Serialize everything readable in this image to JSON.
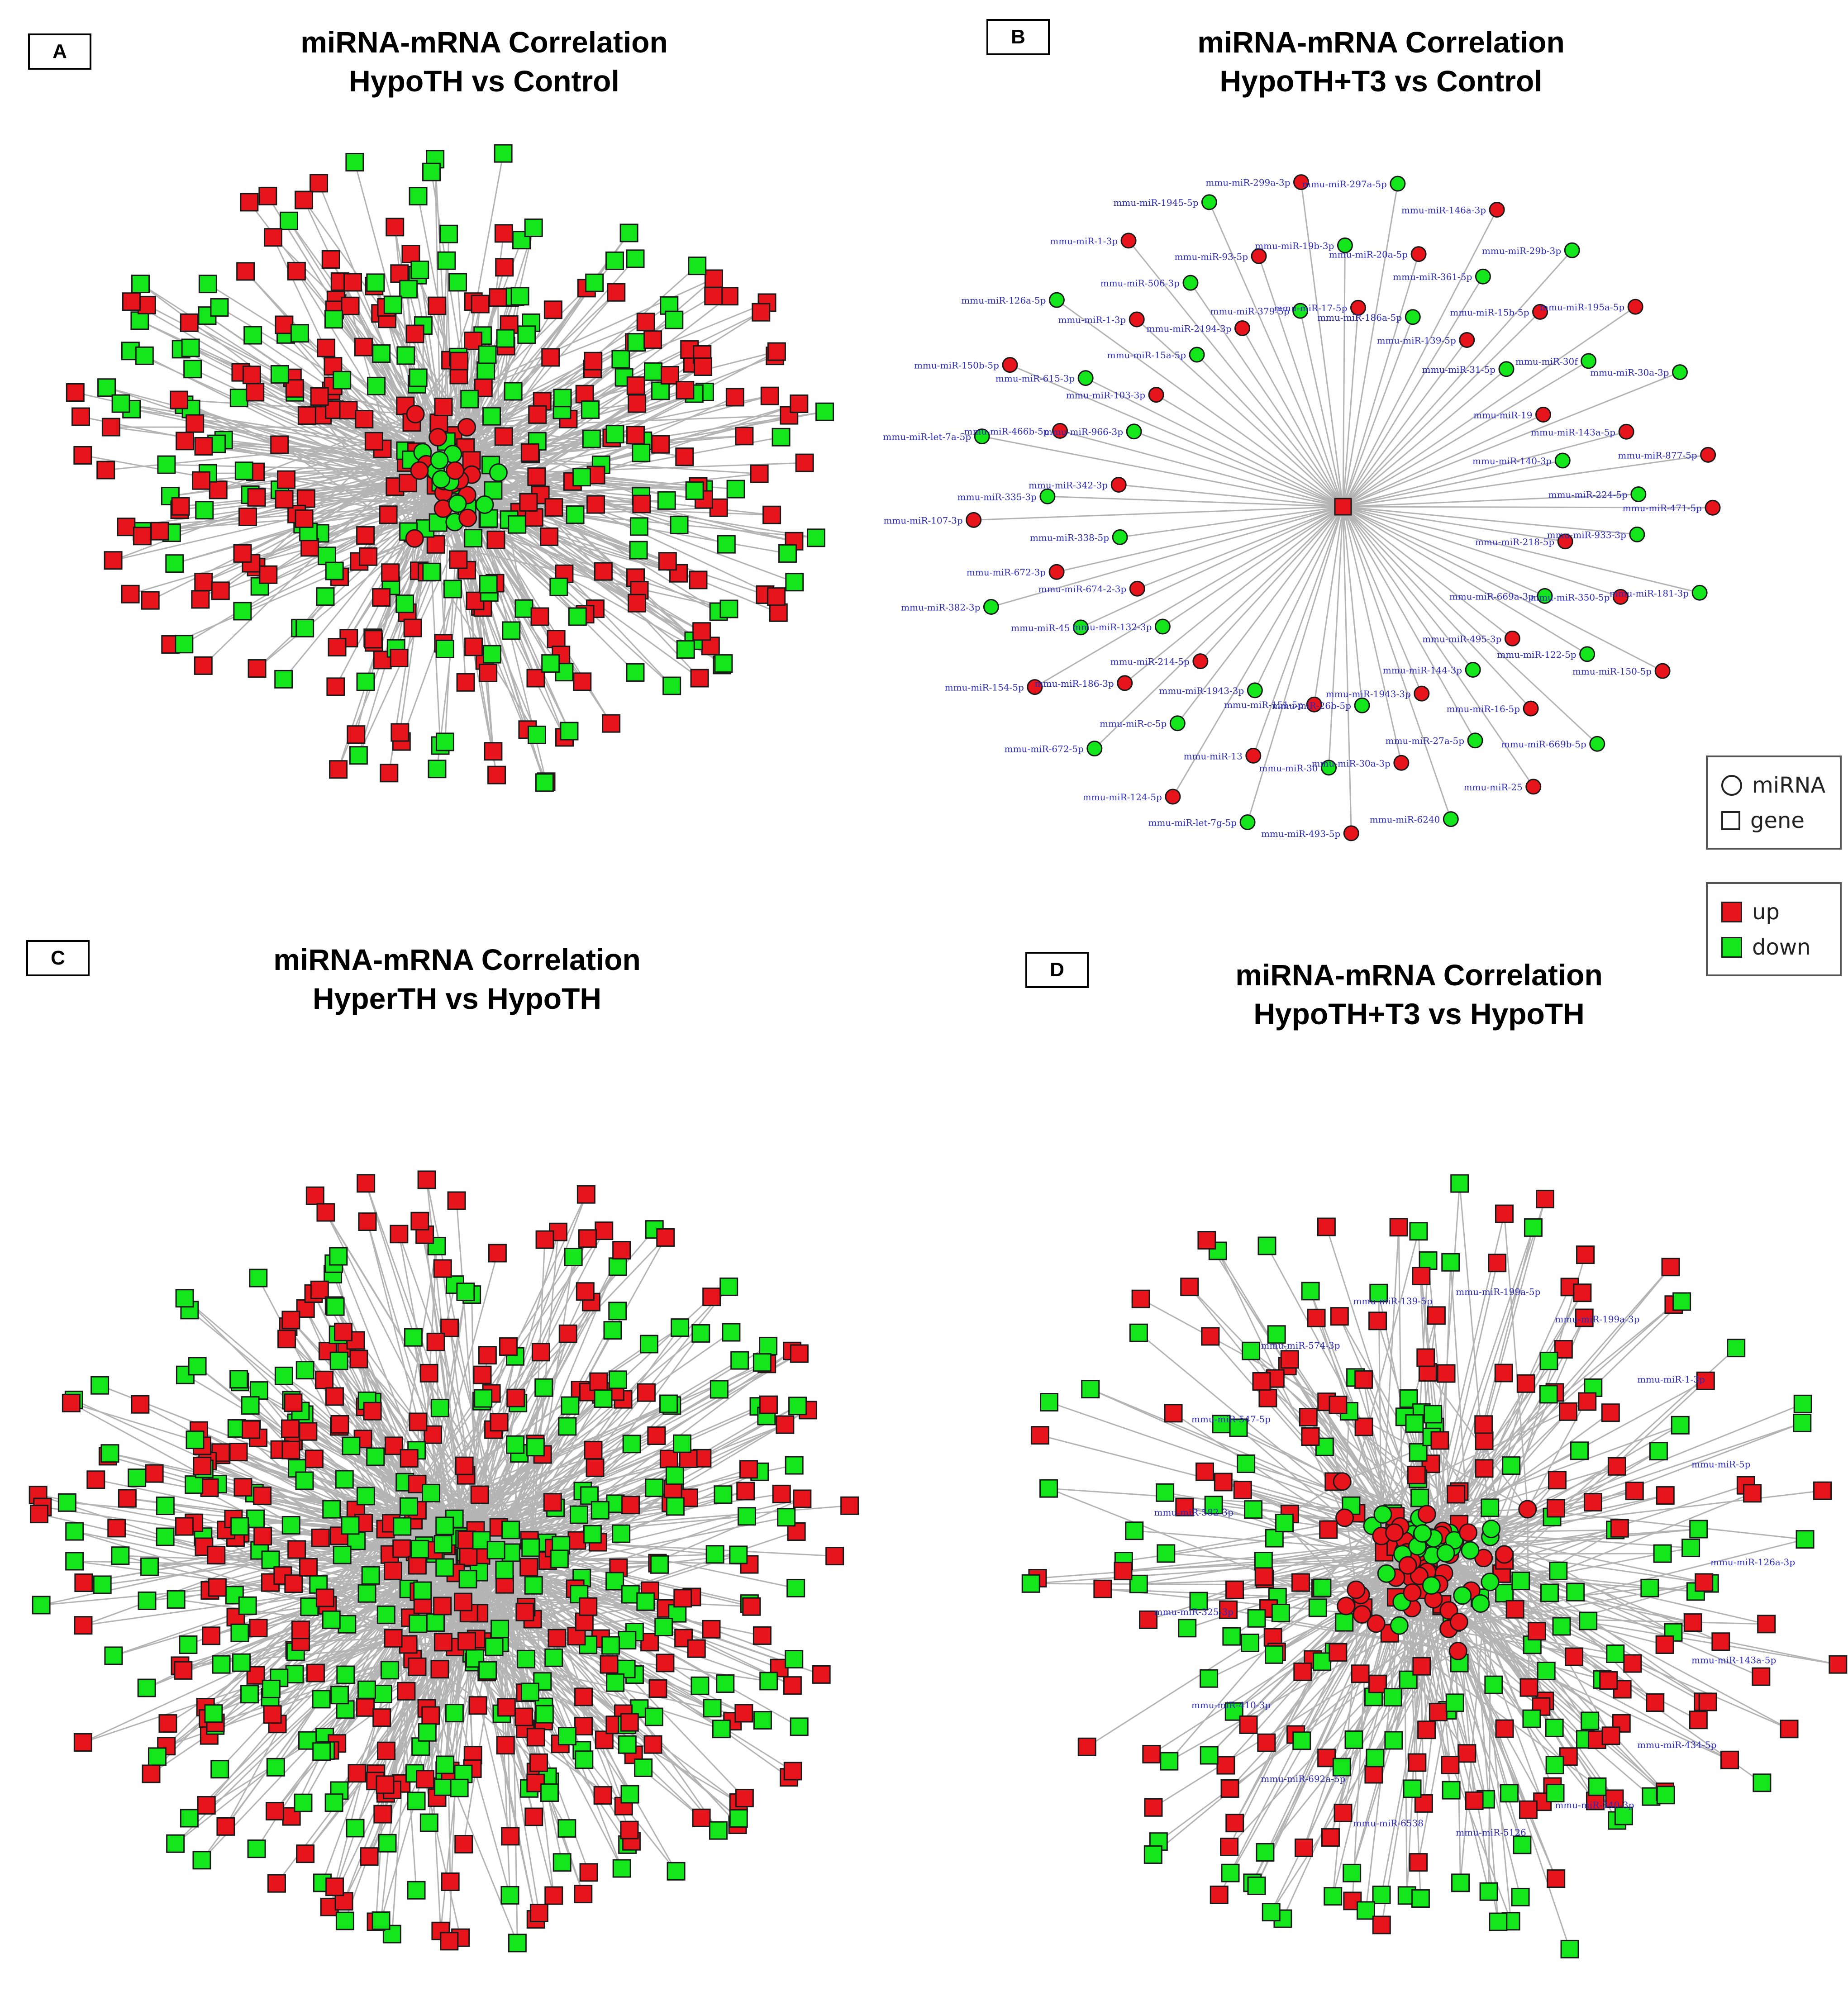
{
  "panels": [
    {
      "letter": "A",
      "title_line1": "miRNA-mRNA Correlation",
      "title_line2": "HypoTH vs Control"
    },
    {
      "letter": "B",
      "title_line1": "miRNA-mRNA Correlation",
      "title_line2": "HypoTH+T3 vs Control"
    },
    {
      "letter": "C",
      "title_line1": "miRNA-mRNA Correlation",
      "title_line2": "HyperTH vs HypoTH"
    },
    {
      "letter": "D",
      "title_line1": "miRNA-mRNA Correlation",
      "title_line2": "HypoTH+T3 vs HypoTH"
    }
  ],
  "legend": {
    "shape": {
      "mirna": "miRNA",
      "gene": "gene"
    },
    "color": {
      "up": "up",
      "down": "down"
    }
  },
  "colors": {
    "up": "#e8141c",
    "down": "#14e61c",
    "edge": "#b4b4b4",
    "outline": "#1a1a1a",
    "label": "#2a2ab4"
  },
  "panel_b_labels": [
    "mmu-miR-471-5p",
    "mmu-miR-933-3p",
    "mmu-miR-218-5p",
    "mmu-miR-181-3p",
    "mmu-miR-350-5p",
    "mmu-miR-669a-3p",
    "mmu-miR-150-5p",
    "mmu-miR-122-5p",
    "mmu-miR-495-3p",
    "mmu-miR-669b-5p",
    "mmu-miR-16-5p",
    "mmu-miR-144-3p",
    "mmu-miR-25",
    "mmu-miR-27a-5p",
    "mmu-miR-1943-3p",
    "mmu-miR-6240",
    "mmu-miR-30a-3p",
    "mmu-miR-26b-5p",
    "mmu-miR-493-5p",
    "mmu-miR-30",
    "mmu-miR-151-5p",
    "mmu-miR-let-7g-5p",
    "mmu-miR-13",
    "mmu-miR-1943-3p",
    "mmu-miR-124-5p",
    "mmu-miR-c-5p",
    "mmu-miR-214-5p",
    "mmu-miR-672-5p",
    "mmu-miR-186-3p",
    "mmu-miR-132-3p",
    "mmu-miR-154-5p",
    "mmu-miR-45",
    "mmu-miR-674-2-3p",
    "mmu-miR-382-3p",
    "mmu-miR-672-3p",
    "mmu-miR-338-5p",
    "mmu-miR-107-3p",
    "mmu-miR-335-3p",
    "mmu-miR-342-3p",
    "mmu-miR-let-7a-5p",
    "mmu-miR-466b-5p",
    "mmu-miR-966-3p",
    "mmu-miR-150b-5p",
    "mmu-miR-615-3p",
    "mmu-miR-103-3p",
    "mmu-miR-126a-5p",
    "mmu-miR-1-3p",
    "mmu-miR-15a-5p",
    "mmu-miR-1-3p",
    "mmu-miR-506-3p",
    "mmu-miR-2194-3p",
    "mmu-miR-1945-5p",
    "mmu-miR-93-5p",
    "mmu-miR-379-5p",
    "mmu-miR-299a-3p",
    "mmu-miR-19b-3p",
    "mmu-miR-17-5p",
    "mmu-miR-297a-5p",
    "mmu-miR-20a-5p",
    "mmu-miR-186a-5p",
    "mmu-miR-146a-3p",
    "mmu-miR-361-5p",
    "mmu-miR-139-5p",
    "mmu-miR-29b-3p",
    "mmu-miR-15b-5p",
    "mmu-miR-31-5p",
    "mmu-miR-195a-5p",
    "mmu-miR-30f",
    "mmu-miR-19",
    "mmu-miR-30a-3p",
    "mmu-miR-143a-5p",
    "mmu-miR-140-3p",
    "mmu-miR-877-5p",
    "mmu-miR-224-5p"
  ],
  "panel_d_labels": [
    "mmu-miR-126a-3p",
    "mmu-miR-143a-5p",
    "mmu-miR-434-5p",
    "mmu-miR-340-3p",
    "mmu-miR-5126",
    "mmu-miR-6538",
    "mmu-miR-692a-5p",
    "mmu-miR-410-3p",
    "mmu-miR-325-3p",
    "mmu-miR-582-3p",
    "mmu-miR-547-5p",
    "mmu-miR-574-3p",
    "mmu-miR-139-5p",
    "mmu-miR-199a-5p",
    "mmu-miR-199a-3p",
    "mmu-miR-1-3p",
    "mmu-miR-5p"
  ]
}
